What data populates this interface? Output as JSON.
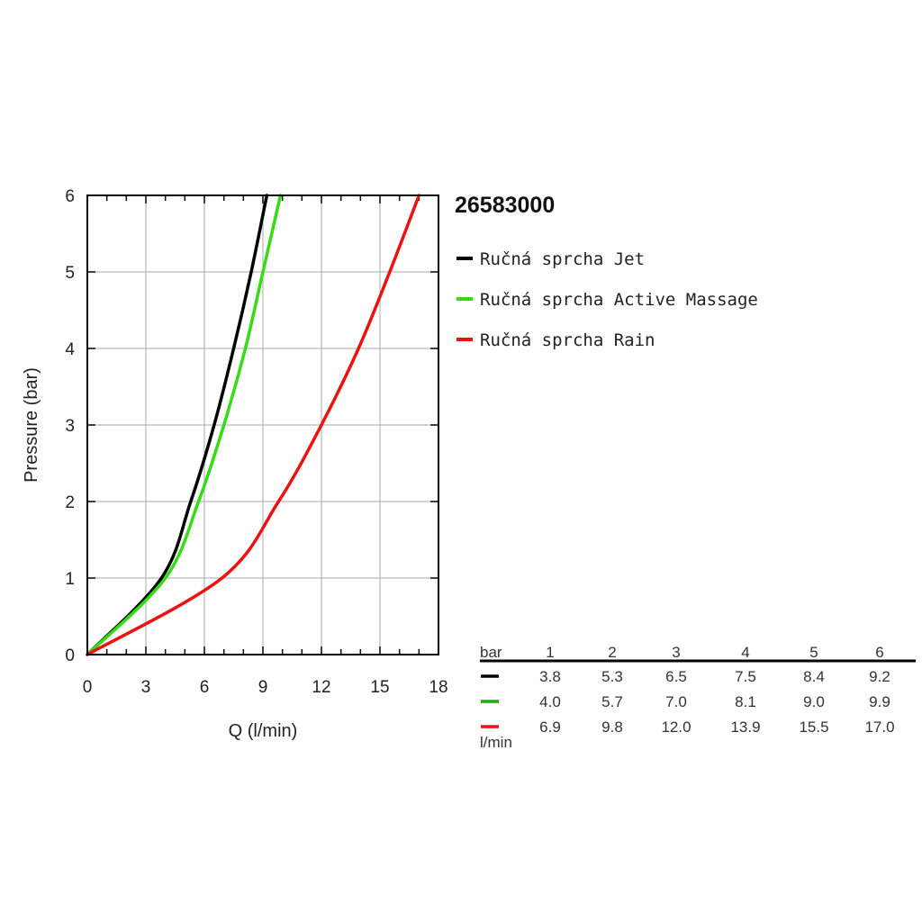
{
  "chart_data": {
    "type": "line",
    "title": "26583000",
    "xlabel": "Q (l/min)",
    "ylabel": "Pressure (bar)",
    "xlim": [
      0,
      18
    ],
    "ylim": [
      0,
      6
    ],
    "xticks": [
      0,
      3,
      6,
      9,
      12,
      15,
      18
    ],
    "yticks": [
      0,
      1,
      2,
      3,
      4,
      5,
      6
    ],
    "grid": true,
    "legend_position": "right",
    "series": [
      {
        "name": "Ručná sprcha Jet",
        "color": "#000000",
        "x": [
          0,
          3.8,
          5.3,
          6.5,
          7.5,
          8.4,
          9.2
        ],
        "y": [
          0,
          1,
          2,
          3,
          4,
          5,
          6
        ]
      },
      {
        "name": "Ručná sprcha Active Massage",
        "color": "#33dd11",
        "x": [
          0,
          4.0,
          5.7,
          7.0,
          8.1,
          9.0,
          9.9
        ],
        "y": [
          0,
          1,
          2,
          3,
          4,
          5,
          6
        ]
      },
      {
        "name": "Ručná sprcha Rain",
        "color": "#ee1111",
        "x": [
          0,
          6.9,
          9.8,
          12.0,
          13.9,
          15.5,
          17.0
        ],
        "y": [
          0,
          1,
          2,
          3,
          4,
          5,
          6
        ]
      }
    ],
    "table": {
      "header_label": "bar",
      "unit_label": "l/min",
      "columns": [
        "1",
        "2",
        "3",
        "4",
        "5",
        "6"
      ],
      "rows": [
        {
          "color": "#000000",
          "values": [
            "3.8",
            "5.3",
            "6.5",
            "7.5",
            "8.4",
            "9.2"
          ]
        },
        {
          "color": "#22aa11",
          "values": [
            "4.0",
            "5.7",
            "7.0",
            "8.1",
            "9.0",
            "9.9"
          ]
        },
        {
          "color": "#ee1111",
          "values": [
            "6.9",
            "9.8",
            "12.0",
            "13.9",
            "15.5",
            "17.0"
          ]
        }
      ]
    }
  }
}
